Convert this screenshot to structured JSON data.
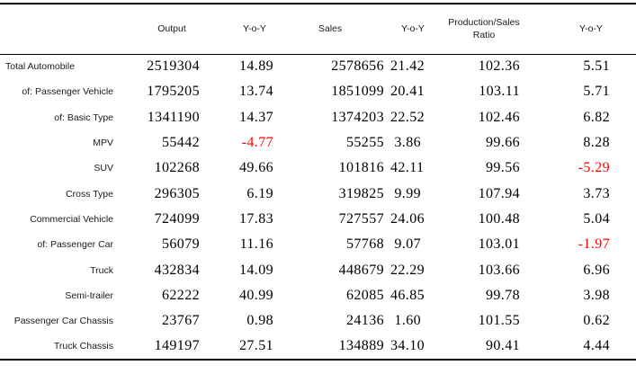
{
  "colors": {
    "negative": "#ff0000",
    "text": "#1a1a1a",
    "rule": "#000000",
    "background": "#ffffff"
  },
  "chart_data": {
    "type": "table",
    "title": "",
    "columns": [
      "",
      "Output",
      "Y-o-Y",
      "Sales",
      "Y-o-Y",
      "Production/Sales Ratio",
      "Y-o-Y"
    ],
    "rows": [
      {
        "label": "Total Automobile",
        "values": [
          "2519304",
          "14.89",
          "2578656",
          "21.42",
          "102.36",
          "5.51"
        ]
      },
      {
        "label": "of: Passenger Vehicle",
        "values": [
          "1795205",
          "13.74",
          "1851099",
          "20.41",
          "103.11",
          "5.71"
        ]
      },
      {
        "label": "of: Basic Type",
        "values": [
          "1341190",
          "14.37",
          "1374203",
          "22.52",
          "102.46",
          "6.82"
        ]
      },
      {
        "label": "MPV",
        "values": [
          "55442",
          "-4.77",
          "55255",
          "3.86",
          "99.66",
          "8.28"
        ]
      },
      {
        "label": "SUV",
        "values": [
          "102268",
          "49.66",
          "101816",
          "42.11",
          "99.56",
          "-5.29"
        ]
      },
      {
        "label": "Cross Type",
        "values": [
          "296305",
          "6.19",
          "319825",
          "9.99",
          "107.94",
          "3.73"
        ]
      },
      {
        "label": "Commercial Vehicle",
        "values": [
          "724099",
          "17.83",
          "727557",
          "24.06",
          "100.48",
          "5.04"
        ]
      },
      {
        "label": "of: Passenger Car",
        "values": [
          "56079",
          "11.16",
          "57768",
          "9.07",
          "103.01",
          "-1.97"
        ]
      },
      {
        "label": "Truck",
        "values": [
          "432834",
          "14.09",
          "448679",
          "22.29",
          "103.66",
          "6.96"
        ]
      },
      {
        "label": "Semi-trailer",
        "values": [
          "62222",
          "40.99",
          "62085",
          "46.85",
          "99.78",
          "3.98"
        ]
      },
      {
        "label": "Passenger Car Chassis",
        "values": [
          "23767",
          "0.98",
          "24136",
          "1.60",
          "101.55",
          "0.62"
        ]
      },
      {
        "label": "Truck Chassis",
        "values": [
          "149197",
          "27.51",
          "134889",
          "34.10",
          "90.41",
          "4.44"
        ]
      }
    ],
    "layout": {
      "negatives_shown_in_red": true,
      "grid": "horizontal rules only: top, below header, bottom",
      "value_columns_align": "right",
      "label_column_align": "right (first row left)"
    }
  }
}
